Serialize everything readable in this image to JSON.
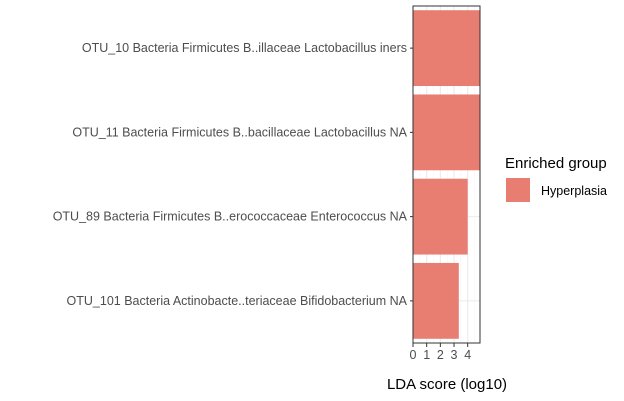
{
  "chart_data": {
    "type": "bar",
    "orientation": "horizontal",
    "categories": [
      "OTU_10 Bacteria Firmicutes B..illaceae Lactobacillus iners",
      "OTU_11 Bacteria Firmicutes B..bacillaceae Lactobacillus NA",
      "OTU_89 Bacteria Firmicutes B..erococcaceae Enterococcus NA",
      "OTU_101 Bacteria Actinobacte..teriaceae Bifidobacterium NA"
    ],
    "series": [
      {
        "name": "Hyperplasia",
        "values": [
          4.9,
          4.9,
          4.0,
          3.35
        ]
      }
    ],
    "xlabel": "LDA score (log10)",
    "ylabel": "",
    "xlim": [
      0,
      4.9
    ],
    "xticks": [
      "0",
      "1",
      "2",
      "3",
      "4"
    ],
    "grid": true,
    "legend": {
      "title": "Enriched group",
      "position": "right",
      "entries": [
        "Hyperplasia"
      ]
    },
    "colors": {
      "bar": "#e87d72",
      "panel_border": "#333333",
      "grid_major": "#ebebeb",
      "grid_minor": "#f5f5f5"
    }
  }
}
